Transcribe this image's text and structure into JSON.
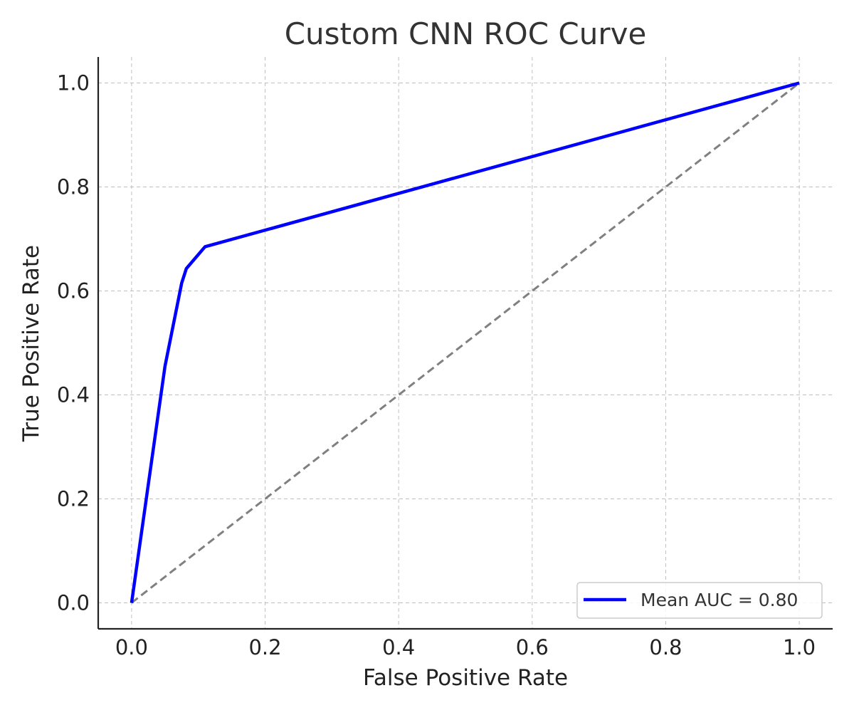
{
  "chart_data": {
    "type": "line",
    "title": "Custom CNN ROC Curve",
    "xlabel": "False Positive Rate",
    "ylabel": "True Positive Rate",
    "xlim": [
      -0.05,
      1.05
    ],
    "ylim": [
      -0.05,
      1.05
    ],
    "x_ticks": [
      0.0,
      0.2,
      0.4,
      0.6,
      0.8,
      1.0
    ],
    "y_ticks": [
      0.0,
      0.2,
      0.4,
      0.6,
      0.8,
      1.0
    ],
    "x_tick_labels": [
      "0.0",
      "0.2",
      "0.4",
      "0.6",
      "0.8",
      "1.0"
    ],
    "y_tick_labels": [
      "0.0",
      "0.2",
      "0.4",
      "0.6",
      "0.8",
      "1.0"
    ],
    "grid": true,
    "legend_position": "lower-right",
    "series": [
      {
        "name": "Mean AUC = 0.80",
        "color": "#0000ff",
        "style": "solid",
        "x": [
          0.0,
          0.05,
          0.075,
          0.082,
          0.11,
          1.0
        ],
        "y": [
          0.0,
          0.455,
          0.615,
          0.643,
          0.685,
          1.0
        ]
      },
      {
        "name": "",
        "color": "#808080",
        "style": "dashed",
        "x": [
          0.0,
          1.0
        ],
        "y": [
          0.0,
          1.0
        ]
      }
    ]
  }
}
